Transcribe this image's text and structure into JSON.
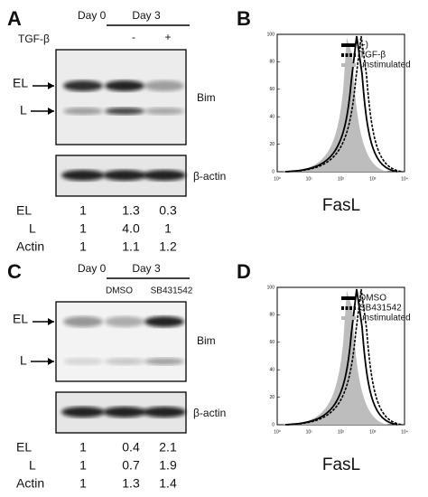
{
  "panels": [
    {
      "letter": "A",
      "day0": "Day 0",
      "day3": "Day 3",
      "treatment_label": "TGF-β",
      "lanes": [
        "-",
        "+"
      ],
      "band_labels": [
        "EL",
        "L"
      ],
      "blot_labels": [
        "Bim",
        "β-actin"
      ],
      "quant": [
        {
          "label": "EL",
          "values": [
            "1",
            "1.3",
            "0.3"
          ]
        },
        {
          "label": "L",
          "values": [
            "1",
            "4.0",
            "1"
          ]
        },
        {
          "label": "Actin",
          "values": [
            "1",
            "1.1",
            "1.2"
          ]
        }
      ]
    },
    {
      "letter": "B",
      "y_ticks": [
        "0",
        "20",
        "40",
        "60",
        "80",
        "100"
      ],
      "x_ticks": [
        "10⁰",
        "10¹",
        "10²",
        "10³",
        "10⁴"
      ],
      "x_label": "FasL",
      "legend": [
        "(-)",
        "TGF-β",
        "unstimulated"
      ]
    },
    {
      "letter": "C",
      "day0": "Day 0",
      "day3": "Day 3",
      "lanes": [
        "DMSO",
        "SB431542"
      ],
      "band_labels": [
        "EL",
        "L"
      ],
      "blot_labels": [
        "Bim",
        "β-actin"
      ],
      "quant": [
        {
          "label": "EL",
          "values": [
            "1",
            "0.4",
            "2.1"
          ]
        },
        {
          "label": "L",
          "values": [
            "1",
            "0.7",
            "1.9"
          ]
        },
        {
          "label": "Actin",
          "values": [
            "1",
            "1.3",
            "1.4"
          ]
        }
      ]
    },
    {
      "letter": "D",
      "y_ticks": [
        "0",
        "20",
        "40",
        "60",
        "80",
        "100"
      ],
      "x_ticks": [
        "10⁰",
        "10¹",
        "10²",
        "10³",
        "10⁴"
      ],
      "x_label": "FasL",
      "legend": [
        "DMSO",
        "SB431542",
        "unstimulated"
      ]
    }
  ]
}
